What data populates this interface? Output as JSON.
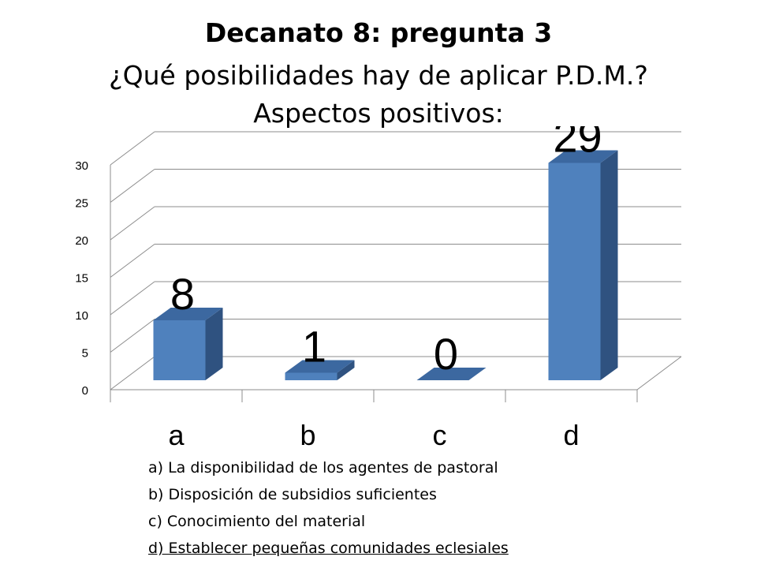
{
  "title": {
    "line1_bold": "Decanato 8:",
    "line1_rest": " pregunta 3",
    "line2": "¿Qué posibilidades hay de aplicar P.D.M.?",
    "line3": "Aspectos positivos:"
  },
  "chart_data": {
    "type": "bar",
    "categories": [
      "a",
      "b",
      "c",
      "d"
    ],
    "values": [
      8,
      1,
      0,
      29
    ],
    "data_labels": [
      "8",
      "1",
      "0",
      "29"
    ],
    "ylim": [
      0,
      30
    ],
    "yticks": [
      0,
      5,
      10,
      15,
      20,
      25,
      30
    ],
    "grid": true,
    "bar_color": "#4F81BD",
    "bar_side_color": "#2F5280",
    "bar_top_color": "#3C68A0",
    "gridline_color": "#8C8C8C"
  },
  "legend": [
    "a) La disponibilidad de los agentes de pastoral",
    "b) Disposición de subsidios suficientes",
    "c) Conocimiento del material",
    "d) Establecer pequeñas comunidades eclesiales"
  ]
}
